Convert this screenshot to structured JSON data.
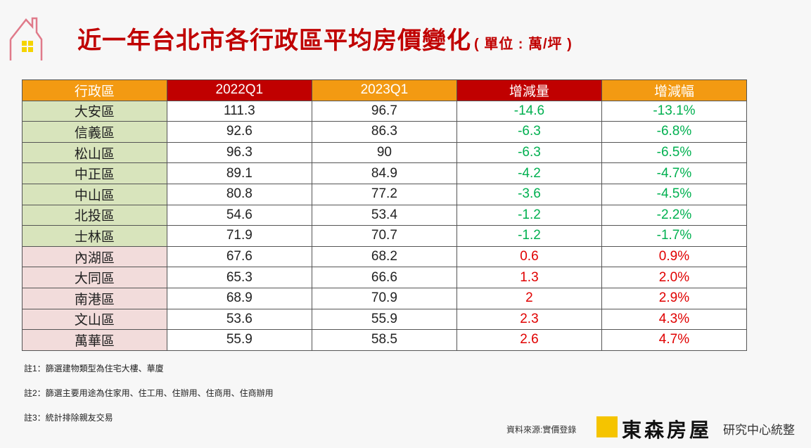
{
  "title": "近一年台北市各行政區平均房價變化",
  "unit": "( 單位 : 萬/坪 )",
  "table": {
    "headers": [
      "行政區",
      "2022Q1",
      "2023Q1",
      "增減量",
      "增減幅"
    ],
    "rows": [
      [
        "大安區",
        "111.3",
        "96.7",
        "-14.6",
        "-13.1%"
      ],
      [
        "信義區",
        "92.6",
        "86.3",
        "-6.3",
        "-6.8%"
      ],
      [
        "松山區",
        "96.3",
        "90",
        "-6.3",
        "-6.5%"
      ],
      [
        "中正區",
        "89.1",
        "84.9",
        "-4.2",
        "-4.7%"
      ],
      [
        "中山區",
        "80.8",
        "77.2",
        "-3.6",
        "-4.5%"
      ],
      [
        "北投區",
        "54.6",
        "53.4",
        "-1.2",
        "-2.2%"
      ],
      [
        "士林區",
        "71.9",
        "70.7",
        "-1.2",
        "-1.7%"
      ],
      [
        "內湖區",
        "67.6",
        "68.2",
        "0.6",
        "0.9%"
      ],
      [
        "大同區",
        "65.3",
        "66.6",
        "1.3",
        "2.0%"
      ],
      [
        "南港區",
        "68.9",
        "70.9",
        "2",
        "2.9%"
      ],
      [
        "文山區",
        "53.6",
        "55.9",
        "2.3",
        "4.3%"
      ],
      [
        "萬華區",
        "55.9",
        "58.5",
        "2.6",
        "4.7%"
      ]
    ]
  },
  "notes": [
    "註1：篩選建物類型為住宅大樓、華廈",
    "註2：篩選主要用途為住家用、住工用、住辦用、住商用、住商辦用",
    "註3：統計排除親友交易"
  ],
  "source": "資料來源:實價登錄",
  "brand": "東森房屋",
  "research": "研究中心統整",
  "colors": {
    "title": "#c00000",
    "header_orange": "#f39a12",
    "header_red": "#c00000",
    "decrease_row": "#d8e4bc",
    "increase_row": "#f2dcdb",
    "decrease_text": "#00b050",
    "increase_text": "#e00000"
  }
}
